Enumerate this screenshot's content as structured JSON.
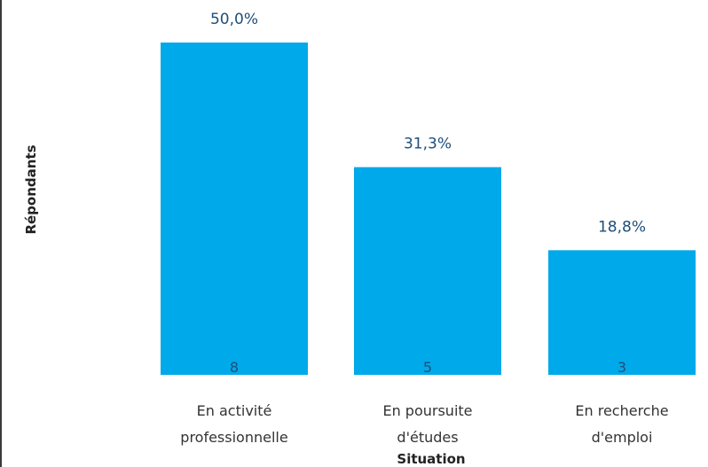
{
  "chart_data": {
    "type": "bar",
    "categories": [
      [
        "En activité",
        "professionnelle"
      ],
      [
        "En poursuite",
        "d'études"
      ],
      [
        "En recherche",
        "d'emploi"
      ]
    ],
    "values": [
      8,
      5,
      3
    ],
    "percent_labels": [
      "50,0%",
      "31,3%",
      "18,8%"
    ],
    "xlabel": "Situation",
    "ylabel": "Répondants",
    "ylim": [
      0,
      8
    ],
    "grid": false,
    "legend": "none"
  },
  "colors": {
    "bar": "#00a9e9",
    "percent_text": "#1f4e79",
    "count_text": "#1f4e79",
    "category_text": "#333333",
    "axis_title_text": "#222222"
  }
}
